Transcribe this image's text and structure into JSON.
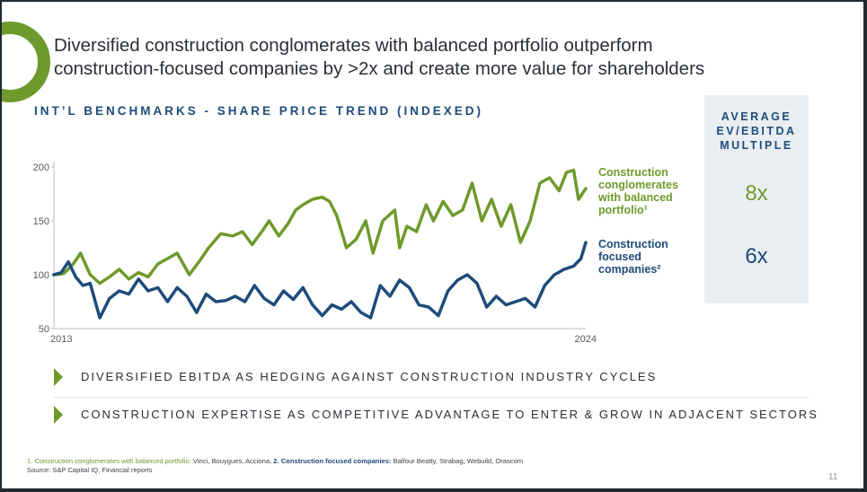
{
  "slide": {
    "title_line1": "Diversified construction conglomerates with balanced portfolio outperform",
    "title_line2": "construction-focused companies by >2x and create more value for shareholders",
    "page_number": "11"
  },
  "chart_data": {
    "type": "line",
    "title": "INT’L BENCHMARKS - SHARE PRICE TREND (INDEXED)",
    "xlabel": "",
    "ylabel": "",
    "x_ticks": [
      "2013",
      "2024"
    ],
    "y_ticks": [
      50,
      100,
      150,
      200
    ],
    "xlim": [
      2013,
      2024
    ],
    "ylim": [
      50,
      200
    ],
    "grid": false,
    "series": [
      {
        "name": "Construction conglomerates with balanced portfolio¹",
        "color": "#6e9a2c",
        "x": [
          2013.0,
          2013.2,
          2013.4,
          2013.55,
          2013.75,
          2013.95,
          2014.15,
          2014.35,
          2014.55,
          2014.75,
          2014.95,
          2015.15,
          2015.35,
          2015.55,
          2015.8,
          2016.0,
          2016.2,
          2016.45,
          2016.7,
          2016.9,
          2017.1,
          2017.3,
          2017.45,
          2017.65,
          2017.85,
          2018.0,
          2018.15,
          2018.35,
          2018.55,
          2018.7,
          2018.85,
          2019.05,
          2019.25,
          2019.45,
          2019.6,
          2019.8,
          2020.05,
          2020.15,
          2020.3,
          2020.5,
          2020.7,
          2020.85,
          2021.05,
          2021.25,
          2021.45,
          2021.65,
          2021.85,
          2022.05,
          2022.25,
          2022.45,
          2022.65,
          2022.85,
          2023.05,
          2023.25,
          2023.45,
          2023.6,
          2023.75,
          2023.85,
          2024.0
        ],
        "values": [
          100,
          101,
          110,
          120,
          100,
          92,
          98,
          105,
          96,
          102,
          98,
          110,
          115,
          120,
          100,
          112,
          125,
          138,
          136,
          140,
          128,
          140,
          150,
          136,
          148,
          160,
          165,
          170,
          172,
          168,
          155,
          125,
          133,
          150,
          120,
          150,
          160,
          125,
          145,
          140,
          165,
          150,
          168,
          155,
          160,
          185,
          150,
          170,
          145,
          165,
          130,
          150,
          185,
          190,
          178,
          195,
          197,
          170,
          180
        ]
      },
      {
        "name": "Construction focused companies²",
        "color": "#1e4b7a",
        "x": [
          2013.0,
          2013.15,
          2013.3,
          2013.45,
          2013.6,
          2013.75,
          2013.95,
          2014.15,
          2014.35,
          2014.55,
          2014.75,
          2014.95,
          2015.15,
          2015.35,
          2015.55,
          2015.75,
          2015.95,
          2016.15,
          2016.35,
          2016.55,
          2016.75,
          2016.95,
          2017.15,
          2017.35,
          2017.55,
          2017.75,
          2017.95,
          2018.15,
          2018.35,
          2018.55,
          2018.75,
          2018.95,
          2019.15,
          2019.35,
          2019.55,
          2019.75,
          2019.95,
          2020.15,
          2020.35,
          2020.55,
          2020.75,
          2020.95,
          2021.15,
          2021.35,
          2021.55,
          2021.75,
          2021.95,
          2022.15,
          2022.35,
          2022.55,
          2022.75,
          2022.95,
          2023.15,
          2023.35,
          2023.55,
          2023.75,
          2023.9,
          2024.0
        ],
        "values": [
          100,
          102,
          112,
          98,
          90,
          92,
          60,
          78,
          85,
          82,
          96,
          85,
          88,
          75,
          88,
          80,
          65,
          82,
          75,
          76,
          80,
          75,
          90,
          78,
          72,
          85,
          77,
          88,
          72,
          62,
          72,
          68,
          75,
          65,
          60,
          90,
          80,
          95,
          88,
          72,
          70,
          62,
          85,
          95,
          100,
          92,
          70,
          80,
          72,
          75,
          78,
          70,
          90,
          100,
          105,
          108,
          115,
          130
        ]
      }
    ],
    "legend": [
      {
        "label": "Construction conglomerates with balanced portfolio¹",
        "color": "#6e9a2c",
        "multiple": "8x"
      },
      {
        "label": "Construction focused companies²",
        "color": "#1e4b7a",
        "multiple": "6x"
      }
    ]
  },
  "legend_text": {
    "green_lines": [
      "Construction",
      "conglomerates",
      "with balanced",
      "portfolio¹"
    ],
    "blue_lines": [
      "Construction",
      "focused",
      "companies²"
    ]
  },
  "panel": {
    "title_lines": [
      "AVERAGE",
      "EV/EBITDA",
      "MULTIPLE"
    ],
    "value_green": "8x",
    "value_blue": "6x"
  },
  "bullets": [
    "DIVERSIFIED EBITDA AS HEDGING AGAINST CONSTRUCTION INDUSTRY CYCLES",
    "CONSTRUCTION EXPERTISE AS COMPETITIVE ADVANTAGE TO ENTER & GROW IN ADJACENT SECTORS"
  ],
  "footnote": {
    "part1_num": "1.",
    "part1_label": "Construction conglomerates with balanced portfolio:",
    "part1_text": " Vinci, Bouygues, Acciona, ",
    "part2_num": "2.",
    "part2_label": "Construction focused companies:",
    "part2_text": " Balfour Beatty, Strabag, Webuild, Orascom",
    "source": "Source: S&P Capital IQ, Financial reports"
  },
  "colors": {
    "green": "#6e9a2c",
    "blue": "#1e4b7a",
    "panel_bg": "#e9eef2"
  }
}
